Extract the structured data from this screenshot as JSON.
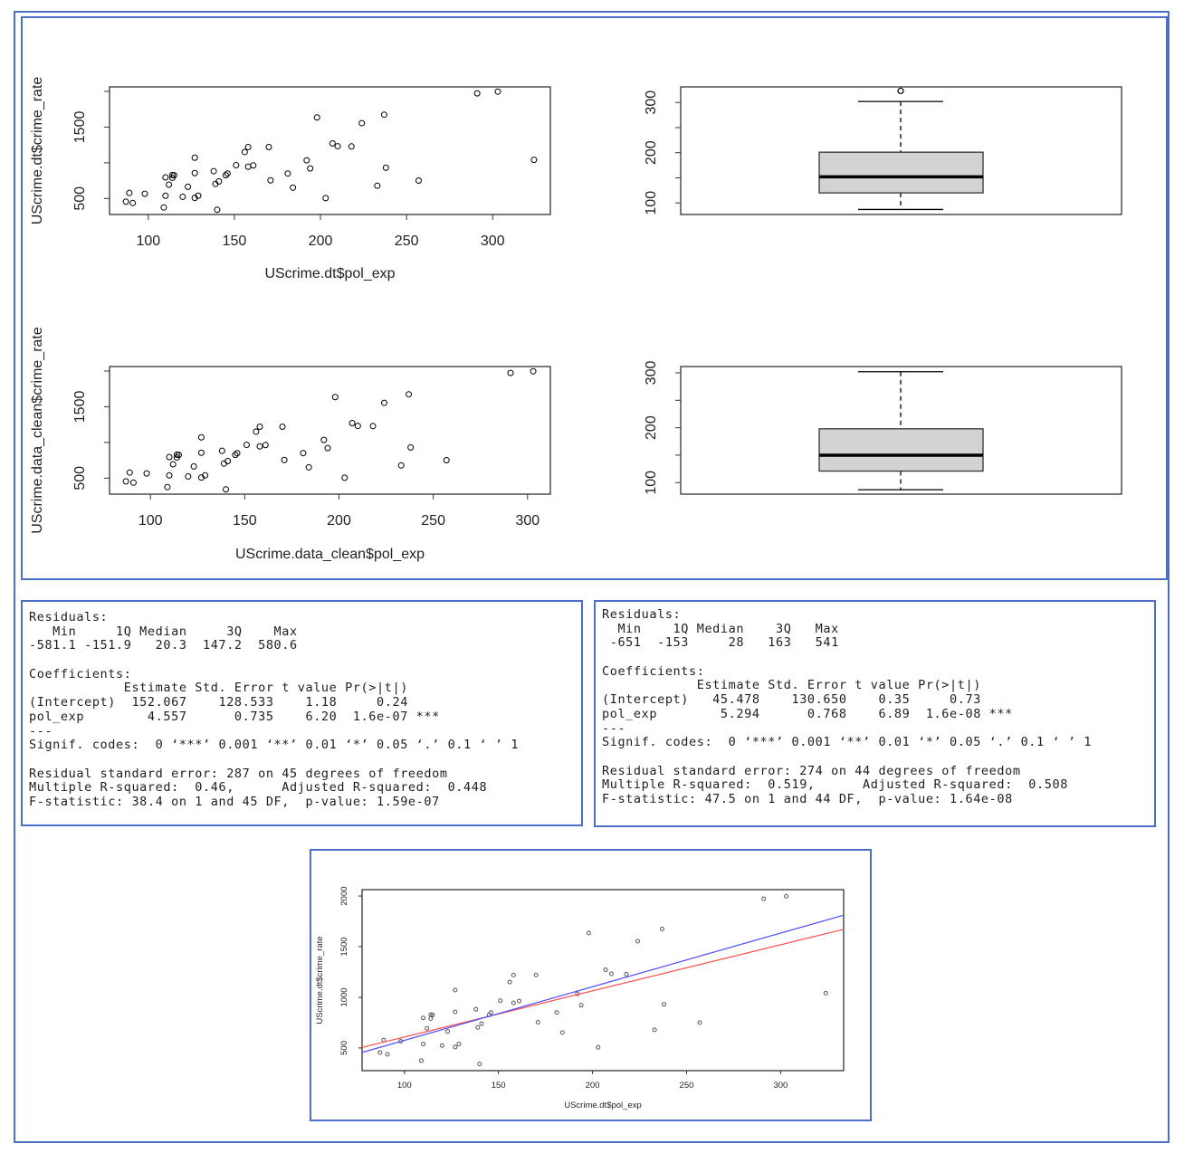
{
  "colors": {
    "frame": "#4a6fc4",
    "box_fill": "#d3d3d3",
    "fit_all": "#ff4d4d",
    "fit_clean": "#4d4dff"
  },
  "chart_data": [
    {
      "type": "scatter",
      "xlabel": "UScrime.dt$pol_exp",
      "ylabel": "UScrime.dt$crime_rate",
      "xlim": [
        77.5,
        333.5
      ],
      "ylim": [
        276,
        2063
      ],
      "xticks": [
        100,
        150,
        200,
        250,
        300
      ],
      "xtick_labels": [
        "100",
        "150",
        "200",
        "250",
        "300"
      ],
      "yticks": [
        500,
        1000,
        1500,
        2000
      ],
      "ytick_labels": [
        "500",
        "",
        "1500",
        ""
      ],
      "x": [
        87,
        89,
        91,
        98,
        109,
        110,
        110,
        112,
        114,
        114,
        115,
        120,
        123,
        127,
        127,
        127,
        129,
        138,
        139,
        140,
        141,
        145,
        146,
        151,
        156,
        158,
        158,
        161,
        170,
        171,
        181,
        184,
        192,
        194,
        198,
        203,
        207,
        210,
        218,
        224,
        233,
        237,
        238,
        257,
        291,
        303,
        324
      ],
      "y": [
        455,
        578,
        437,
        566,
        375,
        796,
        539,
        694,
        829,
        790,
        826,
        524,
        664,
        1071,
        856,
        509,
        539,
        882,
        703,
        342,
        739,
        826,
        850,
        966,
        1151,
        1220,
        945,
        963,
        1220,
        754,
        850,
        652,
        1035,
        921,
        1635,
        506,
        1271,
        1232,
        1229,
        1555,
        679,
        1674,
        930,
        751,
        1973,
        1997,
        1041
      ]
    },
    {
      "type": "box",
      "yticks": [
        100,
        150,
        200,
        250,
        300
      ],
      "ytick_labels": [
        "100",
        "",
        "200",
        "",
        "300"
      ],
      "ylim": [
        77,
        331
      ],
      "whisker_low": 87,
      "q1": 120,
      "median": 152,
      "q3": 201,
      "whisker_high": 302,
      "outliers": [
        323
      ]
    },
    {
      "type": "scatter",
      "xlabel": "UScrime.data_clean$pol_exp",
      "ylabel": "UScrime.data_clean$crime_rate",
      "xlim": [
        78.3,
        312.1
      ],
      "ylim": [
        276,
        2063
      ],
      "xticks": [
        100,
        150,
        200,
        250,
        300
      ],
      "xtick_labels": [
        "100",
        "150",
        "200",
        "250",
        "300"
      ],
      "yticks": [
        500,
        1000,
        1500,
        2000
      ],
      "ytick_labels": [
        "500",
        "",
        "1500",
        ""
      ],
      "x": [
        87,
        89,
        91,
        98,
        109,
        110,
        110,
        112,
        114,
        114,
        115,
        120,
        123,
        127,
        127,
        127,
        129,
        138,
        139,
        140,
        141,
        145,
        146,
        151,
        156,
        158,
        158,
        161,
        170,
        171,
        181,
        184,
        192,
        194,
        198,
        203,
        207,
        210,
        218,
        224,
        233,
        237,
        238,
        257,
        291,
        303
      ],
      "y": [
        455,
        578,
        437,
        566,
        375,
        796,
        539,
        694,
        829,
        790,
        826,
        524,
        664,
        1071,
        856,
        509,
        539,
        882,
        703,
        342,
        739,
        826,
        850,
        966,
        1151,
        1220,
        945,
        963,
        1220,
        754,
        850,
        652,
        1035,
        921,
        1635,
        506,
        1271,
        1232,
        1229,
        1555,
        679,
        1674,
        930,
        751,
        1973,
        1997
      ]
    },
    {
      "type": "box",
      "yticks": [
        100,
        150,
        200,
        250,
        300
      ],
      "ytick_labels": [
        "100",
        "",
        "200",
        "",
        "300"
      ],
      "ylim": [
        79,
        311.5
      ],
      "whisker_low": 87,
      "q1": 121,
      "median": 150,
      "q3": 198,
      "whisker_high": 302,
      "outliers": []
    },
    {
      "type": "scatter",
      "xlabel": "UScrime.dt$pol_exp",
      "ylabel": "UScrime.dt$crime_rate",
      "xlim": [
        77.5,
        333.5
      ],
      "ylim": [
        276,
        2063
      ],
      "xticks": [
        100,
        150,
        200,
        250,
        300
      ],
      "xtick_labels": [
        "100",
        "150",
        "200",
        "250",
        "300"
      ],
      "yticks": [
        500,
        1000,
        1500,
        2000
      ],
      "ytick_labels": [
        "500",
        "1000",
        "1500",
        "2000"
      ],
      "x": [
        87,
        89,
        91,
        98,
        109,
        110,
        110,
        112,
        114,
        114,
        115,
        120,
        123,
        127,
        127,
        127,
        129,
        138,
        139,
        140,
        141,
        145,
        146,
        151,
        156,
        158,
        158,
        161,
        170,
        171,
        181,
        184,
        192,
        194,
        198,
        203,
        207,
        210,
        218,
        224,
        233,
        237,
        238,
        257,
        291,
        303,
        324
      ],
      "y": [
        455,
        578,
        437,
        566,
        375,
        796,
        539,
        694,
        829,
        790,
        826,
        524,
        664,
        1071,
        856,
        509,
        539,
        882,
        703,
        342,
        739,
        826,
        850,
        966,
        1151,
        1220,
        945,
        963,
        1220,
        754,
        850,
        652,
        1035,
        921,
        1635,
        506,
        1271,
        1232,
        1229,
        1555,
        679,
        1674,
        930,
        751,
        1973,
        1997,
        1041
      ],
      "lines": [
        {
          "intercept": 152.067,
          "slope": 4.557,
          "color": "#ff4d4d"
        },
        {
          "intercept": 45.478,
          "slope": 5.294,
          "color": "#4d4dff"
        }
      ]
    }
  ],
  "summaries": [
    {
      "lines": [
        "Residuals:",
        "   Min     1Q Median     3Q    Max ",
        "-581.1 -151.9   20.3  147.2  580.6 ",
        "",
        "Coefficients:",
        "            Estimate Std. Error t value Pr(>|t|)    ",
        "(Intercept)  152.067    128.533    1.18     0.24    ",
        "pol_exp        4.557      0.735    6.20  1.6e-07 ***",
        "---",
        "Signif. codes:  0 ‘***’ 0.001 ‘**’ 0.01 ‘*’ 0.05 ‘.’ 0.1 ‘ ’ 1",
        "",
        "Residual standard error: 287 on 45 degrees of freedom",
        "Multiple R-squared:  0.46,\tAdjusted R-squared:  0.448 ",
        "F-statistic: 38.4 on 1 and 45 DF,  p-value: 1.59e-07"
      ]
    },
    {
      "lines": [
        "Residuals:",
        "  Min    1Q Median    3Q   Max ",
        " -651  -153     28   163   541 ",
        "",
        "Coefficients:",
        "            Estimate Std. Error t value Pr(>|t|)    ",
        "(Intercept)   45.478    130.650    0.35     0.73    ",
        "pol_exp        5.294      0.768    6.89  1.6e-08 ***",
        "---",
        "Signif. codes:  0 ‘***’ 0.001 ‘**’ 0.01 ‘*’ 0.05 ‘.’ 0.1 ‘ ’ 1",
        "",
        "Residual standard error: 274 on 44 degrees of freedom",
        "Multiple R-squared:  0.519,\tAdjusted R-squared:  0.508 ",
        "F-statistic: 47.5 on 1 and 44 DF,  p-value: 1.64e-08"
      ]
    }
  ]
}
